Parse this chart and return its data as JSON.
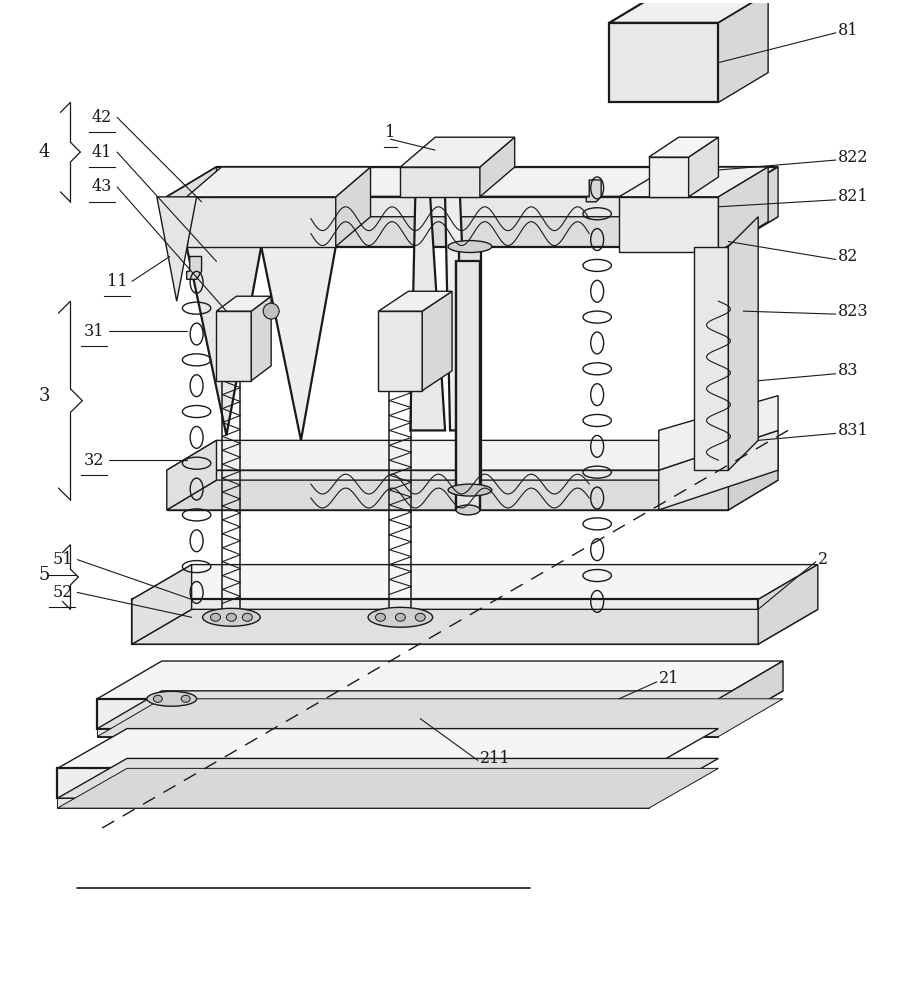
{
  "bg_color": "#ffffff",
  "line_color": "#1a1a1a",
  "fig_width": 9.2,
  "fig_height": 10.0,
  "lw": 1.0,
  "lw_thick": 1.6,
  "lw_thin": 0.7
}
